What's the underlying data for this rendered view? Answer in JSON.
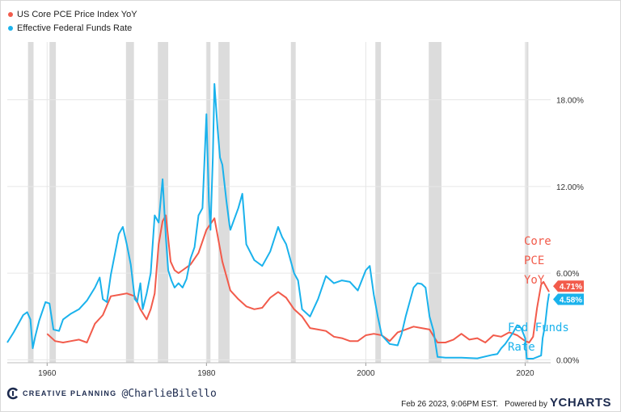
{
  "chart_data": {
    "type": "line",
    "xlim": [
      1955.0,
      2023.2
    ],
    "ylim": [
      -0.2,
      22.0
    ],
    "x_ticks": [
      1960,
      1980,
      2000,
      2020
    ],
    "x_tick_labels": [
      "1960",
      "1980",
      "2000",
      "2020"
    ],
    "y_ticks": [
      0,
      6,
      12,
      18
    ],
    "y_tick_labels": [
      "0.00%",
      "6.00%",
      "12.00%",
      "18.00%"
    ],
    "grid": true,
    "legend_position": "top-left",
    "recessions": [
      [
        1957.6,
        1958.3
      ],
      [
        1960.3,
        1961.1
      ],
      [
        1969.9,
        1970.9
      ],
      [
        1973.9,
        1975.2
      ],
      [
        1980.0,
        1980.5
      ],
      [
        1981.5,
        1982.9
      ],
      [
        1990.6,
        1991.2
      ],
      [
        2001.2,
        2001.9
      ],
      [
        2007.9,
        2009.5
      ],
      [
        2020.1,
        2020.4
      ]
    ],
    "series": [
      {
        "name": "US Core PCE Price Index YoY",
        "color": "#f25b4b",
        "end_label": "4.71%",
        "x": [
          1960.0,
          1961.0,
          1962.0,
          1963.0,
          1964.0,
          1965.0,
          1966.0,
          1967.0,
          1968.0,
          1969.0,
          1970.0,
          1971.0,
          1971.7,
          1972.5,
          1973.0,
          1973.5,
          1974.0,
          1974.5,
          1974.9,
          1975.5,
          1976.0,
          1976.5,
          1977.0,
          1978.0,
          1979.0,
          1980.0,
          1980.5,
          1981.0,
          1981.5,
          1982.0,
          1983.0,
          1984.0,
          1985.0,
          1986.0,
          1987.0,
          1988.0,
          1989.0,
          1990.0,
          1991.0,
          1992.0,
          1993.0,
          1994.0,
          1995.0,
          1996.0,
          1997.0,
          1998.0,
          1999.0,
          2000.0,
          2001.0,
          2002.0,
          2003.0,
          2004.0,
          2005.0,
          2006.0,
          2007.0,
          2008.0,
          2009.0,
          2010.0,
          2011.0,
          2012.0,
          2013.0,
          2014.0,
          2015.0,
          2016.0,
          2017.0,
          2018.0,
          2019.0,
          2020.0,
          2020.5,
          2021.0,
          2021.5,
          2022.0,
          2022.3,
          2022.7,
          2023.0
        ],
        "y": [
          1.8,
          1.3,
          1.2,
          1.3,
          1.4,
          1.2,
          2.5,
          3.1,
          4.4,
          4.5,
          4.6,
          4.4,
          3.5,
          2.8,
          3.5,
          4.6,
          8.0,
          9.6,
          10.0,
          6.8,
          6.2,
          6.0,
          6.2,
          6.6,
          7.4,
          9.0,
          9.4,
          9.8,
          8.3,
          6.8,
          4.8,
          4.2,
          3.7,
          3.5,
          3.6,
          4.3,
          4.7,
          4.3,
          3.5,
          3.0,
          2.2,
          2.1,
          2.0,
          1.6,
          1.5,
          1.3,
          1.3,
          1.7,
          1.8,
          1.7,
          1.3,
          1.9,
          2.1,
          2.3,
          2.2,
          2.1,
          1.2,
          1.2,
          1.4,
          1.8,
          1.4,
          1.5,
          1.2,
          1.7,
          1.6,
          1.9,
          1.7,
          1.3,
          1.2,
          1.6,
          3.6,
          5.2,
          5.4,
          5.0,
          4.71
        ]
      },
      {
        "name": "Effective Federal Funds Rate",
        "color": "#1ab2ec",
        "end_label": "4.58%",
        "x": [
          1955.0,
          1955.8,
          1956.5,
          1957.0,
          1957.5,
          1957.9,
          1958.2,
          1958.5,
          1959.0,
          1959.8,
          1960.3,
          1960.8,
          1961.5,
          1962.0,
          1963.0,
          1964.0,
          1965.0,
          1966.0,
          1966.6,
          1967.0,
          1967.5,
          1968.0,
          1969.0,
          1969.5,
          1970.0,
          1970.5,
          1971.0,
          1971.3,
          1971.7,
          1972.0,
          1972.5,
          1973.0,
          1973.5,
          1974.0,
          1974.5,
          1974.9,
          1975.2,
          1975.6,
          1976.0,
          1976.5,
          1977.0,
          1977.5,
          1978.0,
          1978.5,
          1979.0,
          1979.5,
          1980.0,
          1980.3,
          1980.5,
          1980.8,
          1981.0,
          1981.4,
          1981.7,
          1982.0,
          1982.5,
          1982.9,
          1983.0,
          1984.0,
          1984.5,
          1985.0,
          1986.0,
          1987.0,
          1988.0,
          1989.0,
          1989.5,
          1990.0,
          1991.0,
          1991.5,
          1992.0,
          1993.0,
          1994.0,
          1995.0,
          1996.0,
          1997.0,
          1998.0,
          1999.0,
          2000.0,
          2000.5,
          2001.0,
          2001.5,
          2002.0,
          2003.0,
          2004.0,
          2004.5,
          2005.0,
          2006.0,
          2006.5,
          2007.0,
          2007.5,
          2008.0,
          2008.5,
          2009.0,
          2010.0,
          2012.0,
          2014.0,
          2015.9,
          2016.5,
          2017.0,
          2017.5,
          2018.0,
          2018.5,
          2019.0,
          2019.5,
          2020.0,
          2020.2,
          2020.5,
          2021.0,
          2022.0,
          2022.2,
          2022.5,
          2022.8,
          2023.0
        ],
        "y": [
          1.2,
          1.9,
          2.6,
          3.1,
          3.3,
          2.8,
          0.8,
          1.6,
          2.7,
          4.0,
          3.9,
          2.1,
          2.0,
          2.8,
          3.2,
          3.5,
          4.1,
          5.0,
          5.7,
          4.2,
          4.0,
          5.9,
          8.7,
          9.2,
          8.0,
          6.6,
          4.2,
          4.0,
          5.3,
          3.5,
          4.6,
          6.0,
          10.0,
          9.5,
          12.5,
          8.5,
          6.2,
          5.5,
          5.0,
          5.3,
          5.0,
          5.6,
          7.0,
          7.8,
          10.0,
          10.5,
          17.0,
          11.0,
          9.0,
          14.0,
          19.1,
          16.0,
          14.0,
          13.5,
          11.0,
          9.3,
          9.0,
          10.5,
          11.5,
          8.0,
          6.9,
          6.5,
          7.5,
          9.2,
          8.5,
          8.0,
          6.0,
          5.5,
          3.5,
          3.0,
          4.2,
          5.8,
          5.3,
          5.5,
          5.4,
          4.8,
          6.2,
          6.5,
          4.5,
          3.0,
          1.7,
          1.1,
          1.0,
          1.8,
          3.0,
          5.0,
          5.3,
          5.25,
          5.0,
          3.0,
          2.0,
          0.2,
          0.15,
          0.15,
          0.1,
          0.35,
          0.4,
          0.8,
          1.1,
          1.5,
          1.9,
          2.4,
          2.2,
          1.5,
          0.08,
          0.08,
          0.08,
          0.3,
          1.5,
          2.4,
          3.9,
          4.58
        ]
      }
    ],
    "annotations": [
      {
        "lines": [
          "Core",
          "PCE",
          "YoY"
        ],
        "color": "#f25b4b"
      },
      {
        "lines": [
          "Fed Funds",
          "Rate"
        ],
        "color": "#1ab2ec"
      }
    ]
  },
  "legend": {
    "items": [
      {
        "label": "US Core PCE Price Index YoY",
        "color": "#f25b4b"
      },
      {
        "label": "Effective Federal Funds Rate",
        "color": "#1ab2ec"
      }
    ]
  },
  "footer": {
    "brand": "CREATIVE PLANNING",
    "handle": "@CharlieBilello",
    "timestamp": "Feb 26 2023, 9:06PM EST.",
    "powered_by": "Powered by",
    "ycharts": "YCHARTS"
  }
}
